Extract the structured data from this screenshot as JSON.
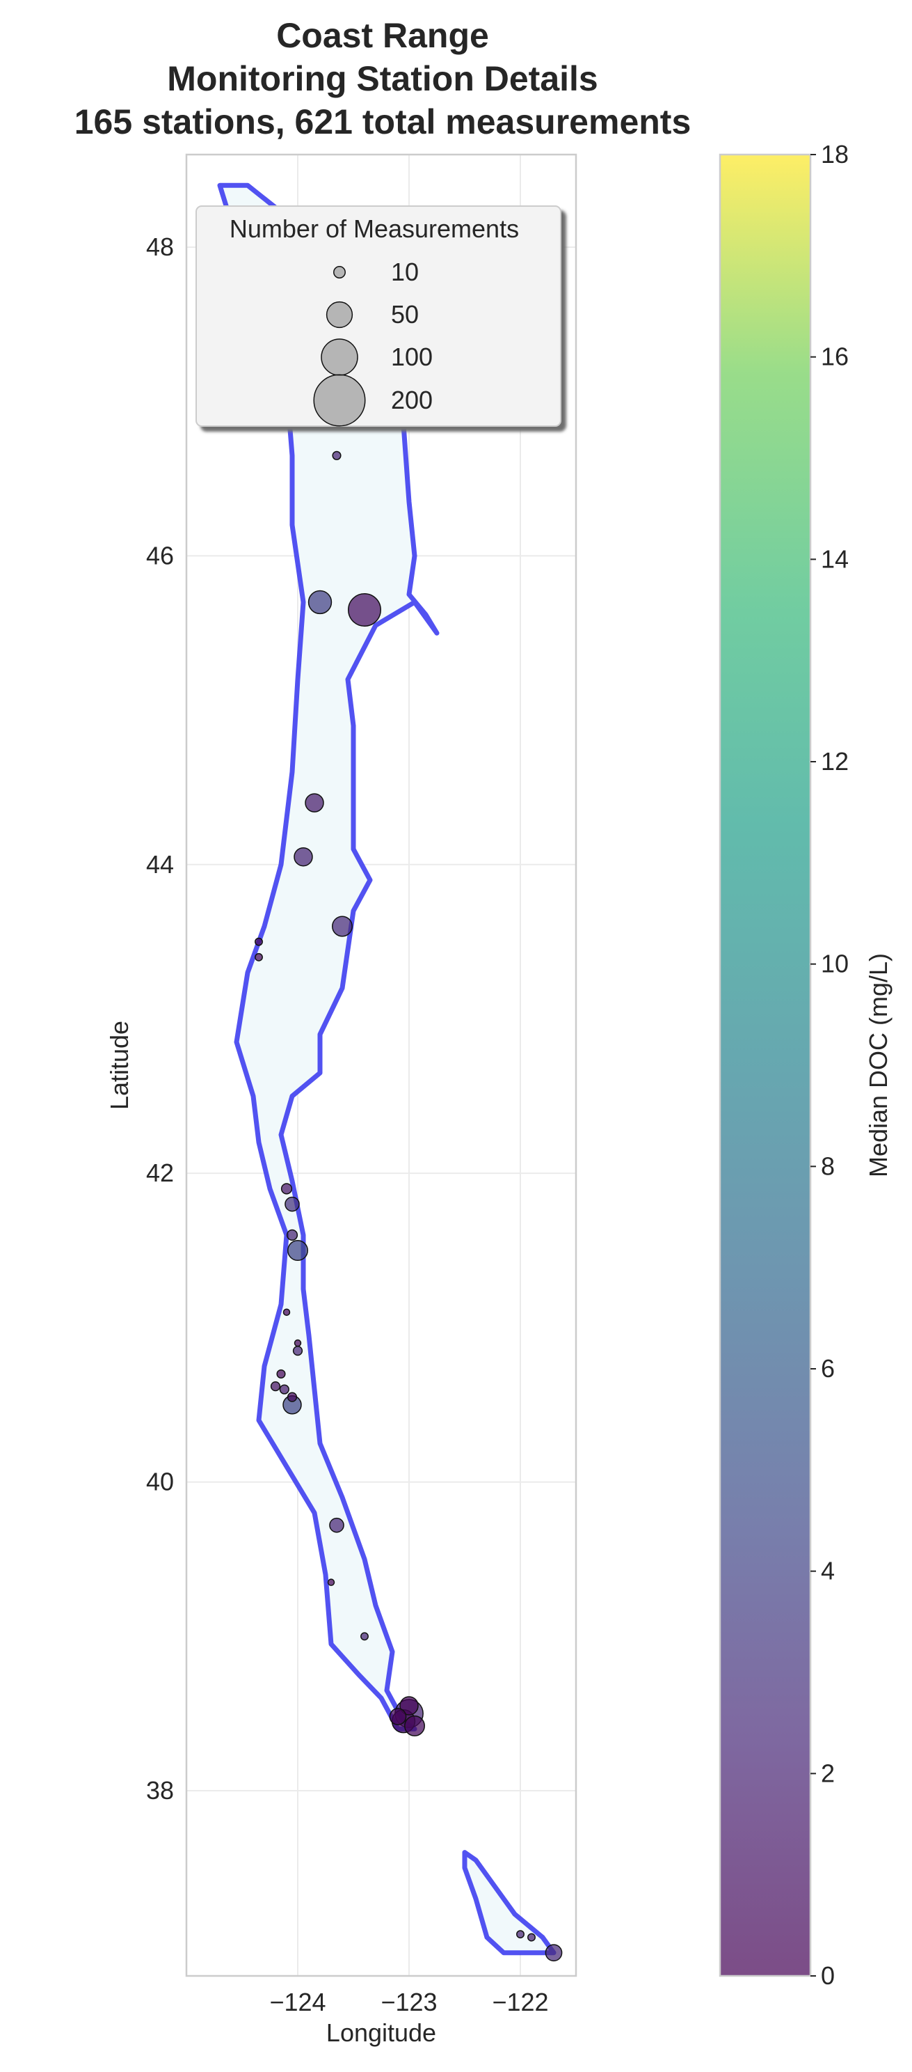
{
  "chart_data": {
    "type": "scatter",
    "title": [
      "Coast Range",
      "Monitoring Station Details",
      "165 stations, 621 total measurements"
    ],
    "xlabel": "Longitude",
    "ylabel": "Latitude",
    "xlim": [
      -125.0,
      -121.5
    ],
    "ylim": [
      36.8,
      48.6
    ],
    "xticks": [
      -124,
      -123,
      -122
    ],
    "xtick_labels": [
      "−124",
      "−123",
      "−122"
    ],
    "yticks": [
      38,
      40,
      42,
      44,
      46,
      48
    ],
    "ytick_labels": [
      "38",
      "40",
      "42",
      "44",
      "46",
      "48"
    ],
    "grid": true,
    "region_outline_color": "#3f3fef",
    "region_fill_color": "#f1f9fb",
    "region_outline": [
      [
        -124.7,
        48.4
      ],
      [
        -124.45,
        48.4
      ],
      [
        -124.1,
        48.2
      ],
      [
        -123.65,
        47.85
      ],
      [
        -123.25,
        47.35
      ],
      [
        -123.05,
        46.85
      ],
      [
        -123.0,
        46.35
      ],
      [
        -122.95,
        46.0
      ],
      [
        -123.0,
        45.75
      ],
      [
        -122.85,
        45.62
      ],
      [
        -122.75,
        45.5
      ],
      [
        -122.95,
        45.7
      ],
      [
        -123.3,
        45.55
      ],
      [
        -123.55,
        45.2
      ],
      [
        -123.5,
        44.9
      ],
      [
        -123.5,
        44.4
      ],
      [
        -123.5,
        44.1
      ],
      [
        -123.35,
        43.9
      ],
      [
        -123.5,
        43.7
      ],
      [
        -123.6,
        43.2
      ],
      [
        -123.8,
        42.9
      ],
      [
        -123.8,
        42.65
      ],
      [
        -124.05,
        42.5
      ],
      [
        -124.15,
        42.25
      ],
      [
        -124.05,
        41.95
      ],
      [
        -123.95,
        41.6
      ],
      [
        -123.95,
        41.25
      ],
      [
        -123.9,
        40.95
      ],
      [
        -123.85,
        40.6
      ],
      [
        -123.8,
        40.25
      ],
      [
        -123.6,
        39.9
      ],
      [
        -123.4,
        39.5
      ],
      [
        -123.3,
        39.2
      ],
      [
        -123.15,
        38.9
      ],
      [
        -123.2,
        38.65
      ],
      [
        -123.05,
        38.45
      ],
      [
        -122.95,
        38.4
      ],
      [
        -123.1,
        38.4
      ],
      [
        -123.25,
        38.6
      ],
      [
        -123.45,
        38.75
      ],
      [
        -123.7,
        38.95
      ],
      [
        -123.75,
        39.4
      ],
      [
        -123.85,
        39.8
      ],
      [
        -124.1,
        40.1
      ],
      [
        -124.35,
        40.4
      ],
      [
        -124.3,
        40.75
      ],
      [
        -124.15,
        41.15
      ],
      [
        -124.1,
        41.6
      ],
      [
        -124.25,
        41.9
      ],
      [
        -124.35,
        42.2
      ],
      [
        -124.4,
        42.5
      ],
      [
        -124.55,
        42.85
      ],
      [
        -124.45,
        43.3
      ],
      [
        -124.3,
        43.6
      ],
      [
        -124.15,
        44.0
      ],
      [
        -124.05,
        44.6
      ],
      [
        -124.0,
        45.2
      ],
      [
        -123.95,
        45.7
      ],
      [
        -124.05,
        46.2
      ],
      [
        -124.05,
        46.65
      ],
      [
        -124.1,
        47.1
      ],
      [
        -124.4,
        47.7
      ],
      [
        -124.7,
        48.4
      ]
    ],
    "island_outline": [
      [
        -122.5,
        37.6
      ],
      [
        -122.4,
        37.55
      ],
      [
        -122.25,
        37.4
      ],
      [
        -122.05,
        37.2
      ],
      [
        -121.8,
        37.05
      ],
      [
        -121.7,
        36.95
      ],
      [
        -121.85,
        36.95
      ],
      [
        -122.15,
        36.95
      ],
      [
        -122.3,
        37.05
      ],
      [
        -122.4,
        37.3
      ],
      [
        -122.5,
        37.5
      ],
      [
        -122.5,
        37.6
      ]
    ],
    "points": [
      {
        "lon": -123.8,
        "lat": 45.7,
        "n": 40,
        "doc": 3.8
      },
      {
        "lon": -123.4,
        "lat": 45.65,
        "n": 80,
        "doc": 0.8
      },
      {
        "lon": -123.85,
        "lat": 44.4,
        "n": 25,
        "doc": 1.5
      },
      {
        "lon": -123.95,
        "lat": 44.05,
        "n": 25,
        "doc": 2.0
      },
      {
        "lon": -123.6,
        "lat": 43.6,
        "n": 30,
        "doc": 2.4
      },
      {
        "lon": -123.65,
        "lat": 46.65,
        "n": 5,
        "doc": 2.0
      },
      {
        "lon": -124.1,
        "lat": 41.9,
        "n": 8,
        "doc": 1.2
      },
      {
        "lon": -124.05,
        "lat": 41.8,
        "n": 15,
        "doc": 3.0
      },
      {
        "lon": -124.05,
        "lat": 41.6,
        "n": 8,
        "doc": 2.0
      },
      {
        "lon": -124.0,
        "lat": 41.5,
        "n": 30,
        "doc": 4.2
      },
      {
        "lon": -124.0,
        "lat": 40.85,
        "n": 6,
        "doc": 2.2
      },
      {
        "lon": -124.05,
        "lat": 40.5,
        "n": 25,
        "doc": 4.2
      },
      {
        "lon": -124.05,
        "lat": 40.55,
        "n": 6,
        "doc": 0.5
      },
      {
        "lon": -124.12,
        "lat": 40.6,
        "n": 6,
        "doc": 1.5
      },
      {
        "lon": -124.2,
        "lat": 40.62,
        "n": 6,
        "doc": 1.0
      },
      {
        "lon": -124.15,
        "lat": 40.7,
        "n": 5,
        "doc": 0.3
      },
      {
        "lon": -123.65,
        "lat": 39.72,
        "n": 15,
        "doc": 2.2
      },
      {
        "lon": -123.4,
        "lat": 39.0,
        "n": 4,
        "doc": 2.0
      },
      {
        "lon": -123.0,
        "lat": 38.5,
        "n": 60,
        "doc": 2.2
      },
      {
        "lon": -123.05,
        "lat": 38.45,
        "n": 40,
        "doc": 0.6
      },
      {
        "lon": -122.95,
        "lat": 38.42,
        "n": 30,
        "doc": 0.4
      },
      {
        "lon": -123.1,
        "lat": 38.48,
        "n": 20,
        "doc": 0.3
      },
      {
        "lon": -123.0,
        "lat": 38.55,
        "n": 25,
        "doc": 0.2
      },
      {
        "lon": -121.7,
        "lat": 36.95,
        "n": 20,
        "doc": 2.4
      },
      {
        "lon": -122.0,
        "lat": 37.07,
        "n": 4,
        "doc": 2.0
      },
      {
        "lon": -121.9,
        "lat": 37.05,
        "n": 4,
        "doc": 1.8
      },
      {
        "lon": -124.35,
        "lat": 43.5,
        "n": 4,
        "doc": 0.5
      },
      {
        "lon": -124.35,
        "lat": 43.4,
        "n": 4,
        "doc": 0.4
      },
      {
        "lon": -124.1,
        "lat": 41.1,
        "n": 3,
        "doc": 0.3
      },
      {
        "lon": -124.0,
        "lat": 40.9,
        "n": 3,
        "doc": 0.2
      },
      {
        "lon": -123.7,
        "lat": 39.35,
        "n": 3,
        "doc": 0.3
      }
    ],
    "size_legend": {
      "title": "Number of Measurements",
      "placement": "upper-left",
      "entries": [
        {
          "n": 10,
          "label": "10"
        },
        {
          "n": 50,
          "label": "50"
        },
        {
          "n": 100,
          "label": "100"
        },
        {
          "n": 200,
          "label": "200"
        }
      ]
    },
    "colorbar": {
      "label": "Median DOC (mg/L)",
      "colormap": "viridis",
      "vmin": 0,
      "vmax": 18,
      "ticks": [
        0,
        2,
        4,
        6,
        8,
        10,
        12,
        14,
        16,
        18
      ],
      "tick_labels": [
        "0",
        "2",
        "4",
        "6",
        "8",
        "10",
        "12",
        "14",
        "16",
        "18"
      ]
    }
  }
}
